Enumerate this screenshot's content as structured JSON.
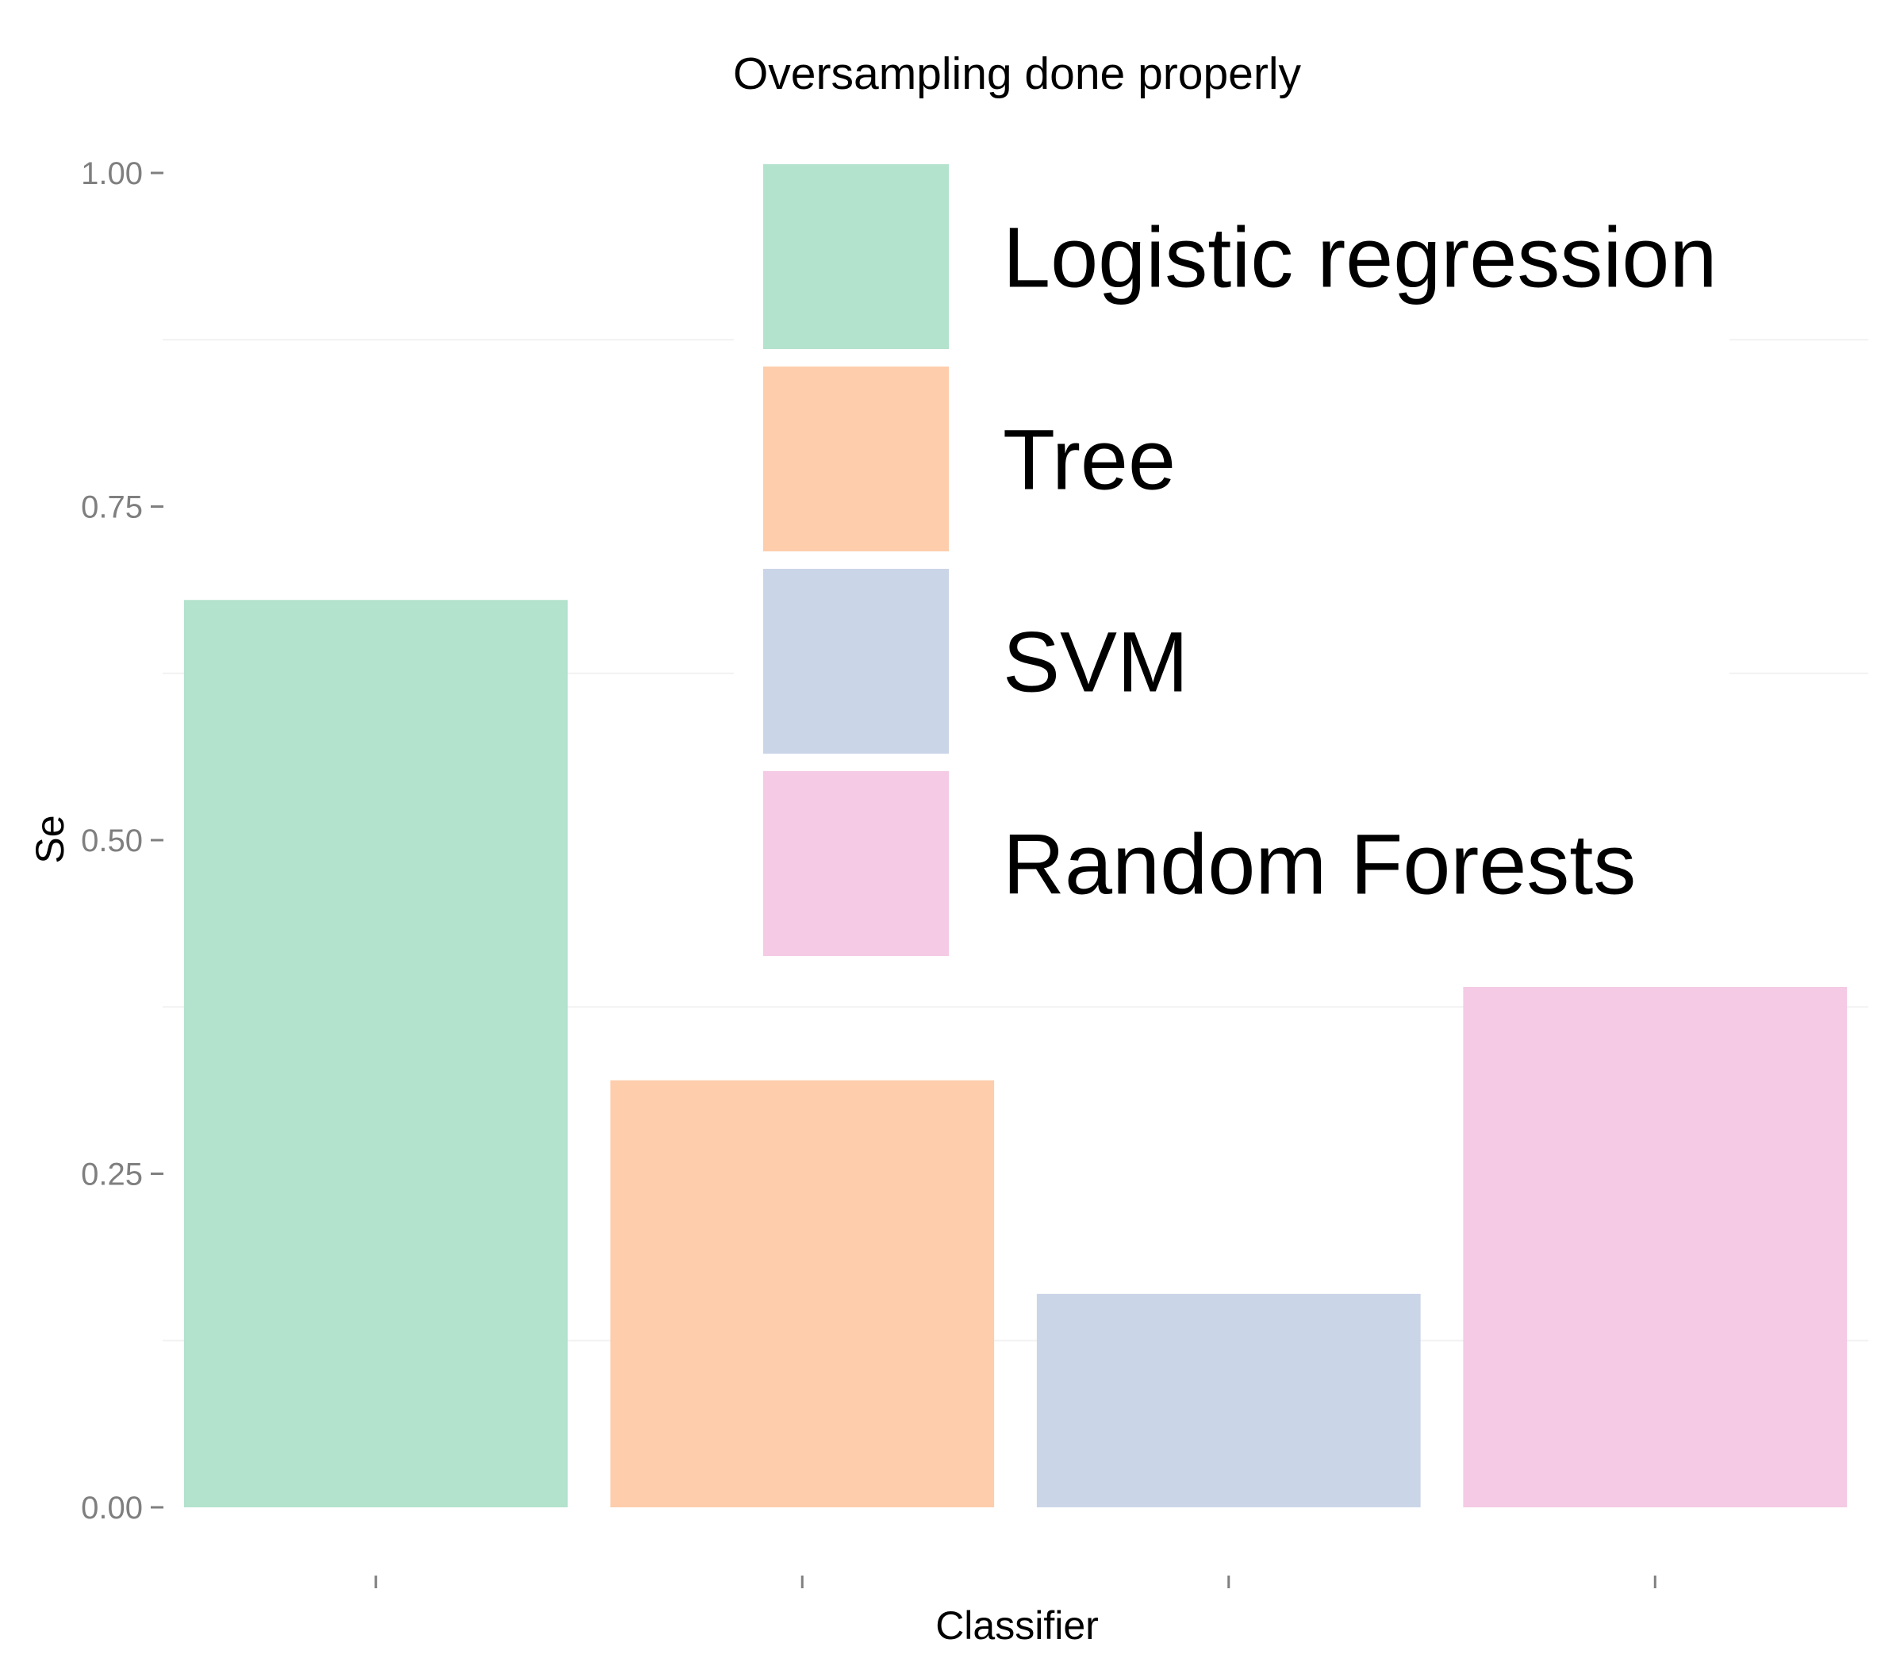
{
  "chart_data": {
    "type": "bar",
    "title": "Oversampling done properly",
    "xlabel": "Classifier",
    "ylabel": "Se",
    "ylim": [
      0,
      1
    ],
    "yticks": [
      0.0,
      0.25,
      0.5,
      0.75,
      1.0
    ],
    "ytick_labels": [
      "0.00",
      "0.25",
      "0.50",
      "0.75",
      "1.00"
    ],
    "categories": [
      "Logistic regression",
      "Tree",
      "SVM",
      "Random Forests"
    ],
    "values": [
      0.68,
      0.32,
      0.16,
      0.39
    ],
    "colors": [
      "#b3e2cd",
      "#fdcdac",
      "#cbd5e8",
      "#f4cae4"
    ],
    "x_tick_labels_visible": false,
    "grid": true,
    "legend": {
      "position": "top-right-inside",
      "entries": [
        "Logistic regression",
        "Tree",
        "SVM",
        "Random Forests"
      ]
    }
  }
}
